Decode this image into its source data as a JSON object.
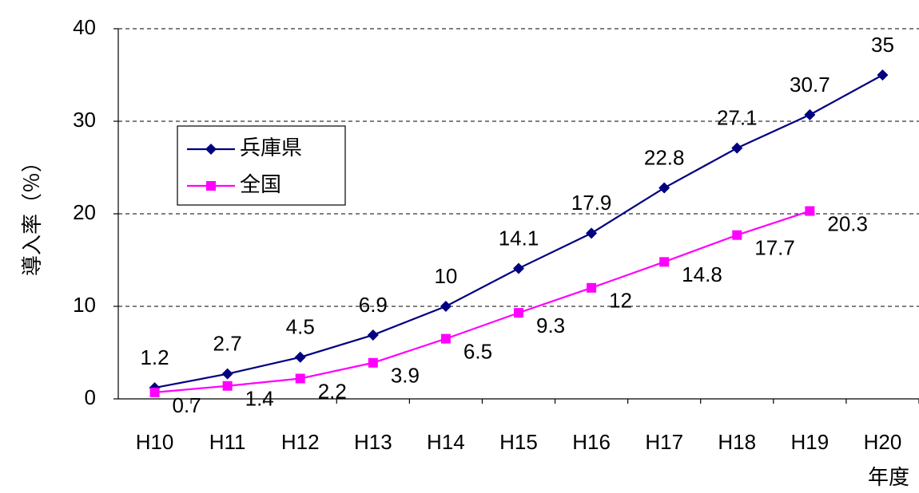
{
  "chart_data": {
    "type": "line",
    "y_label": "導入率（％）",
    "x_label": "年度",
    "categories": [
      "H10",
      "H11",
      "H12",
      "H13",
      "H14",
      "H15",
      "H16",
      "H17",
      "H18",
      "H19",
      "H20"
    ],
    "series": [
      {
        "name": "兵庫県",
        "color": "#000080",
        "marker": "diamond",
        "values": [
          1.2,
          2.7,
          4.5,
          6.9,
          10,
          14.1,
          17.9,
          22.8,
          27.1,
          30.7,
          35
        ]
      },
      {
        "name": "全国",
        "color": "#ff00ff",
        "marker": "square",
        "values": [
          0.7,
          1.4,
          2.2,
          3.9,
          6.5,
          9.3,
          12,
          14.8,
          17.7,
          20.3,
          null
        ]
      }
    ],
    "ylim": [
      0,
      40
    ],
    "yticks": [
      0,
      10,
      20,
      30,
      40
    ],
    "grid": true,
    "legend": "upper left"
  }
}
